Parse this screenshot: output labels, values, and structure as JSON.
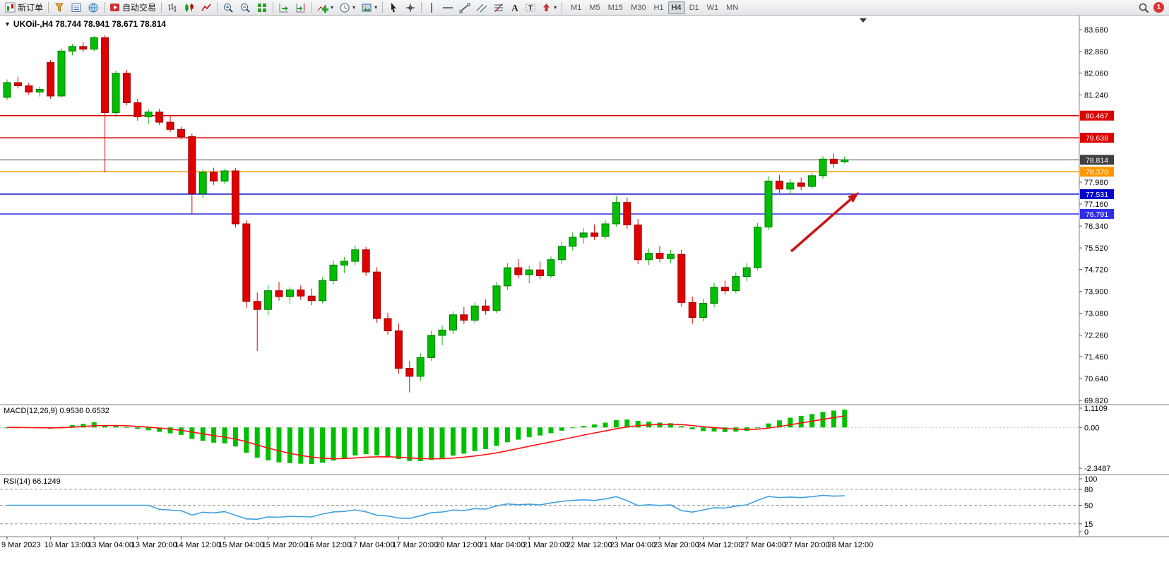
{
  "toolbar": {
    "new_order_label": "新订单",
    "auto_trading_label": "自动交易",
    "timeframes": [
      "M1",
      "M5",
      "M15",
      "M30",
      "H1",
      "H4",
      "D1",
      "W1",
      "MN"
    ],
    "active_timeframe": "H4",
    "notification_count": "1"
  },
  "chart": {
    "title": "UKOil-,H4 78.744 78.941 78.671 78.814",
    "symbol": "UKOil-",
    "period": "H4",
    "open": "78.744",
    "high": "78.941",
    "low": "78.671",
    "close": "78.814"
  },
  "macd": {
    "label": "MACD(12,26,9) 0.9536 0.6532",
    "name": "MACD",
    "params": "12,26,9",
    "value_main": "0.9536",
    "value_signal": "0.6532",
    "scale_max": 1.1109,
    "scale_min": -2.3487,
    "scale_labels": [
      "1.1109",
      "0.00",
      "-2.3487"
    ]
  },
  "rsi": {
    "label": "RSI(14) 66.1249",
    "name": "RSI",
    "params": "14",
    "value": "66.1249",
    "scale_values": [
      100,
      80,
      50,
      15,
      0
    ],
    "scale_labels": [
      "100",
      "80",
      "50",
      "15",
      "0"
    ],
    "levels": [
      80,
      50,
      15
    ]
  },
  "chart_data": {
    "type": "candlestick",
    "title": "UKOil-,H4",
    "symbol": "UKOil-",
    "timeframe": "H4",
    "price_axis": {
      "min": 69.82,
      "max": 83.68,
      "ticks": [
        83.68,
        82.86,
        82.06,
        81.24,
        77.98,
        77.16,
        76.34,
        75.52,
        74.72,
        73.9,
        73.08,
        72.26,
        71.46,
        70.64,
        69.82
      ]
    },
    "time_labels": [
      "9 Mar 2023",
      "10 Mar 13:00",
      "13 Mar 04:00",
      "13 Mar 20:00",
      "14 Mar 12:00",
      "15 Mar 04:00",
      "15 Mar 20:00",
      "16 Mar 12:00",
      "17 Mar 04:00",
      "17 Mar 20:00",
      "20 Mar 12:00",
      "21 Mar 04:00",
      "21 Mar 20:00",
      "22 Mar 12:00",
      "23 Mar 04:00",
      "23 Mar 20:00",
      "24 Mar 12:00",
      "27 Mar 04:00",
      "27 Mar 20:00",
      "28 Mar 12:00"
    ],
    "candles_per_label": 4,
    "candles": [
      [
        81.15,
        81.82,
        81.05,
        81.7
      ],
      [
        81.7,
        81.92,
        81.48,
        81.58
      ],
      [
        81.58,
        81.7,
        81.25,
        81.35
      ],
      [
        81.35,
        81.55,
        81.18,
        81.45
      ],
      [
        82.45,
        82.55,
        81.1,
        81.2
      ],
      [
        81.2,
        82.98,
        81.15,
        82.88
      ],
      [
        82.88,
        83.15,
        82.72,
        83.05
      ],
      [
        83.05,
        83.22,
        82.85,
        82.95
      ],
      [
        82.95,
        83.45,
        82.88,
        83.38
      ],
      [
        83.38,
        83.47,
        78.34,
        80.58
      ],
      [
        80.58,
        82.15,
        80.42,
        82.05
      ],
      [
        82.05,
        82.18,
        80.85,
        80.95
      ],
      [
        80.95,
        81.1,
        80.28,
        80.42
      ],
      [
        80.42,
        80.7,
        80.15,
        80.6
      ],
      [
        80.6,
        80.72,
        80.12,
        80.22
      ],
      [
        80.22,
        80.48,
        79.85,
        79.95
      ],
      [
        79.95,
        80.05,
        79.58,
        79.68
      ],
      [
        79.68,
        79.8,
        76.79,
        77.55
      ],
      [
        77.55,
        78.45,
        77.4,
        78.35
      ],
      [
        78.35,
        78.52,
        77.88,
        78.02
      ],
      [
        78.02,
        78.48,
        77.92,
        78.4
      ],
      [
        78.4,
        78.5,
        76.28,
        76.42
      ],
      [
        76.42,
        76.55,
        73.28,
        73.52
      ],
      [
        73.52,
        73.85,
        71.67,
        73.22
      ],
      [
        73.22,
        74.12,
        73.0,
        73.92
      ],
      [
        73.92,
        74.25,
        73.55,
        73.7
      ],
      [
        73.7,
        74.05,
        73.42,
        73.95
      ],
      [
        73.95,
        74.12,
        73.58,
        73.72
      ],
      [
        73.72,
        74.0,
        73.38,
        73.55
      ],
      [
        73.55,
        74.42,
        73.45,
        74.3
      ],
      [
        74.3,
        75.05,
        74.15,
        74.88
      ],
      [
        74.88,
        75.18,
        74.58,
        75.02
      ],
      [
        75.02,
        75.62,
        74.88,
        75.45
      ],
      [
        75.45,
        75.55,
        74.48,
        74.62
      ],
      [
        74.62,
        74.8,
        72.72,
        72.88
      ],
      [
        72.88,
        73.1,
        72.28,
        72.42
      ],
      [
        72.42,
        72.7,
        70.82,
        71.02
      ],
      [
        71.02,
        71.3,
        70.12,
        70.72
      ],
      [
        70.72,
        71.58,
        70.55,
        71.42
      ],
      [
        71.42,
        72.42,
        71.3,
        72.25
      ],
      [
        72.25,
        72.62,
        71.88,
        72.45
      ],
      [
        72.45,
        73.15,
        72.3,
        73.02
      ],
      [
        73.02,
        73.3,
        72.68,
        72.82
      ],
      [
        72.82,
        73.48,
        72.7,
        73.35
      ],
      [
        73.35,
        73.6,
        73.02,
        73.18
      ],
      [
        73.18,
        74.25,
        73.08,
        74.1
      ],
      [
        74.1,
        74.95,
        73.95,
        74.78
      ],
      [
        74.78,
        75.1,
        74.38,
        74.52
      ],
      [
        74.52,
        74.85,
        74.2,
        74.7
      ],
      [
        74.7,
        75.02,
        74.35,
        74.48
      ],
      [
        74.48,
        75.2,
        74.38,
        75.08
      ],
      [
        75.08,
        75.75,
        74.92,
        75.58
      ],
      [
        75.58,
        76.1,
        75.42,
        75.92
      ],
      [
        75.92,
        76.25,
        75.68,
        76.08
      ],
      [
        76.08,
        76.4,
        75.82,
        75.95
      ],
      [
        75.95,
        76.55,
        75.85,
        76.42
      ],
      [
        76.42,
        77.45,
        76.32,
        77.22
      ],
      [
        77.22,
        77.4,
        76.22,
        76.38
      ],
      [
        76.38,
        76.6,
        74.92,
        75.08
      ],
      [
        75.08,
        75.5,
        74.88,
        75.32
      ],
      [
        75.32,
        75.6,
        74.98,
        75.12
      ],
      [
        75.12,
        75.45,
        74.95,
        75.28
      ],
      [
        75.28,
        75.45,
        73.32,
        73.48
      ],
      [
        73.48,
        73.7,
        72.68,
        72.92
      ],
      [
        72.92,
        73.62,
        72.78,
        73.45
      ],
      [
        73.45,
        74.22,
        73.3,
        74.05
      ],
      [
        74.05,
        74.3,
        73.78,
        73.92
      ],
      [
        73.92,
        74.6,
        73.82,
        74.45
      ],
      [
        74.45,
        74.95,
        74.28,
        74.78
      ],
      [
        74.78,
        76.45,
        74.68,
        76.3
      ],
      [
        76.3,
        78.2,
        76.18,
        78.02
      ],
      [
        78.02,
        78.25,
        77.58,
        77.72
      ],
      [
        77.72,
        78.1,
        77.52,
        77.95
      ],
      [
        77.95,
        78.15,
        77.68,
        77.82
      ],
      [
        77.82,
        78.32,
        77.72,
        78.22
      ],
      [
        78.22,
        78.95,
        78.1,
        78.84
      ],
      [
        78.84,
        79.05,
        78.52,
        78.68
      ],
      [
        78.744,
        78.941,
        78.671,
        78.814
      ]
    ],
    "horizontal_lines": [
      {
        "price": 80.467,
        "label": "80.467",
        "color": "#dd0000",
        "role": "resistance"
      },
      {
        "price": 79.638,
        "label": "79.638",
        "color": "#dd0000",
        "role": "resistance"
      },
      {
        "price": 78.814,
        "label": "78.814",
        "color": "#404040",
        "role": "current-price"
      },
      {
        "price": 78.37,
        "label": "78.370",
        "color": "#ff9800",
        "role": "level"
      },
      {
        "price": 77.531,
        "label": "77.531",
        "color": "#0000cc",
        "role": "support"
      },
      {
        "price": 76.791,
        "label": "76.791",
        "color": "#2f2fe8",
        "role": "support"
      }
    ],
    "annotation_arrow": {
      "from": [
        1120,
        334
      ],
      "to": [
        1216,
        250
      ],
      "color": "#cc1414"
    },
    "colors": {
      "up": "#00bf00",
      "up_border": "#007700",
      "down": "#e00000",
      "down_border": "#990000",
      "macd_histogram": "#00bf00",
      "macd_signal": "#ff1111",
      "rsi_line": "#3f9fdf",
      "background": "#ffffff",
      "axis_line": "#808080"
    },
    "legend_position": "top-left",
    "grid": false
  }
}
